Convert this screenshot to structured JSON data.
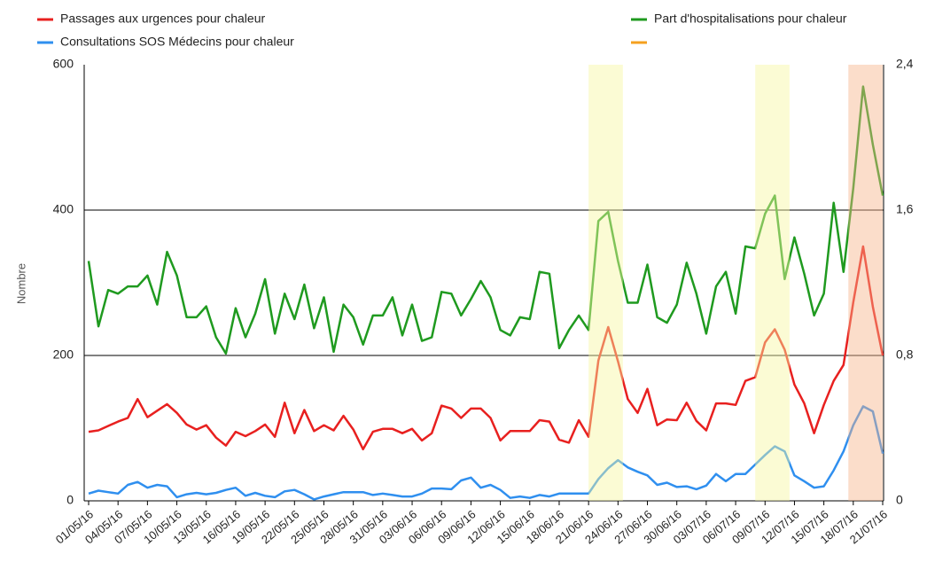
{
  "chart_data": {
    "type": "line",
    "y_label": "Nombre",
    "categories": [
      "01/05/16",
      null,
      null,
      "04/05/16",
      null,
      null,
      "07/05/16",
      null,
      null,
      "10/05/16",
      null,
      null,
      "13/05/16",
      null,
      null,
      "16/05/16",
      null,
      null,
      "19/05/16",
      null,
      null,
      "22/05/16",
      null,
      null,
      "25/05/16",
      null,
      null,
      "28/05/16",
      null,
      null,
      "31/05/16",
      null,
      null,
      "03/06/16",
      null,
      null,
      "06/06/16",
      null,
      null,
      "09/06/16",
      null,
      null,
      "12/06/16",
      null,
      null,
      "15/06/16",
      null,
      null,
      "18/06/16",
      null,
      null,
      "21/06/16",
      null,
      null,
      "24/06/16",
      null,
      null,
      "27/06/16",
      null,
      null,
      "30/06/16",
      null,
      null,
      "03/07/16",
      null,
      null,
      "06/07/16",
      null,
      null,
      "09/07/16",
      null,
      null,
      "12/07/16",
      null,
      null,
      "15/07/16",
      null,
      null,
      "18/07/16",
      null,
      null,
      "21/07/16"
    ],
    "series": [
      {
        "name": "Passages aux urgences pour chaleur",
        "color": "#e8201f",
        "values": [
          95,
          97,
          103,
          109,
          114,
          140,
          115,
          124,
          133,
          121,
          105,
          98,
          104,
          87,
          76,
          95,
          89,
          96,
          105,
          88,
          135,
          93,
          125,
          96,
          104,
          97,
          117,
          98,
          71,
          95,
          99,
          99,
          93,
          99,
          83,
          93,
          131,
          127,
          114,
          127,
          127,
          114,
          83,
          96,
          96,
          96,
          111,
          109,
          84,
          80,
          111,
          88,
          193,
          239,
          192,
          140,
          121,
          154,
          104,
          112,
          111,
          135,
          110,
          97,
          134,
          134,
          132,
          165,
          170,
          218,
          236,
          208,
          160,
          134,
          93,
          132,
          165,
          187,
          273,
          350,
          267,
          200
        ]
      },
      {
        "name": "Consultations SOS Médecins pour chaleur",
        "color": "#2f8fef",
        "values": [
          10,
          14,
          12,
          10,
          22,
          26,
          18,
          22,
          20,
          5,
          9,
          11,
          9,
          11,
          15,
          18,
          7,
          11,
          7,
          5,
          13,
          15,
          9,
          2,
          6,
          9,
          12,
          12,
          12,
          8,
          10,
          8,
          6,
          6,
          10,
          17,
          17,
          16,
          28,
          32,
          18,
          22,
          15,
          4,
          6,
          4,
          8,
          6,
          10,
          10,
          10,
          10,
          30,
          45,
          56,
          46,
          40,
          35,
          22,
          25,
          19,
          20,
          16,
          21,
          37,
          27,
          37,
          37,
          50,
          63,
          75,
          68,
          35,
          27,
          18,
          20,
          42,
          68,
          104,
          130,
          123,
          65
        ]
      },
      {
        "name": "Part d'hospitalisations pour chaleur",
        "color": "#1f9a1f",
        "axis": "y2",
        "values": [
          1.32,
          0.96,
          1.16,
          1.14,
          1.18,
          1.18,
          1.24,
          1.08,
          1.37,
          1.24,
          1.01,
          1.01,
          1.07,
          0.9,
          0.81,
          1.06,
          0.9,
          1.03,
          1.22,
          0.92,
          1.14,
          1.0,
          1.19,
          0.95,
          1.12,
          0.82,
          1.08,
          1.01,
          0.86,
          1.02,
          1.02,
          1.12,
          0.91,
          1.08,
          0.88,
          0.9,
          1.15,
          1.14,
          1.02,
          1.11,
          1.21,
          1.12,
          0.94,
          0.91,
          1.01,
          1.0,
          1.26,
          1.25,
          0.84,
          0.94,
          1.02,
          0.94,
          1.54,
          1.59,
          1.32,
          1.09,
          1.09,
          1.3,
          1.01,
          0.98,
          1.08,
          1.31,
          1.14,
          0.92,
          1.18,
          1.26,
          1.03,
          1.4,
          1.39,
          1.58,
          1.68,
          1.22,
          1.45,
          1.25,
          1.02,
          1.14,
          1.64,
          1.26,
          1.72,
          2.28,
          1.96,
          1.68
        ]
      },
      {
        "color": "#f5a01f"
      }
    ],
    "ylim": [
      0,
      600
    ],
    "yticks": [
      0,
      200,
      400,
      600
    ],
    "y2lim": [
      0,
      2.4
    ],
    "y2ticks": [
      0,
      {
        "value": 0.8,
        "label": "0,8"
      },
      {
        "value": 1.6,
        "label": "1,6"
      },
      {
        "value": 2.4,
        "label": "2,4"
      }
    ],
    "grid": true,
    "legend": "top",
    "highlights": [
      {
        "from": 51,
        "to": 54.5,
        "color": "#f7f7a0"
      },
      {
        "from": 68,
        "to": 71.5,
        "color": "#f7f7a0"
      },
      {
        "from": 77.5,
        "to": 81,
        "color": "#f7b48a"
      }
    ]
  }
}
